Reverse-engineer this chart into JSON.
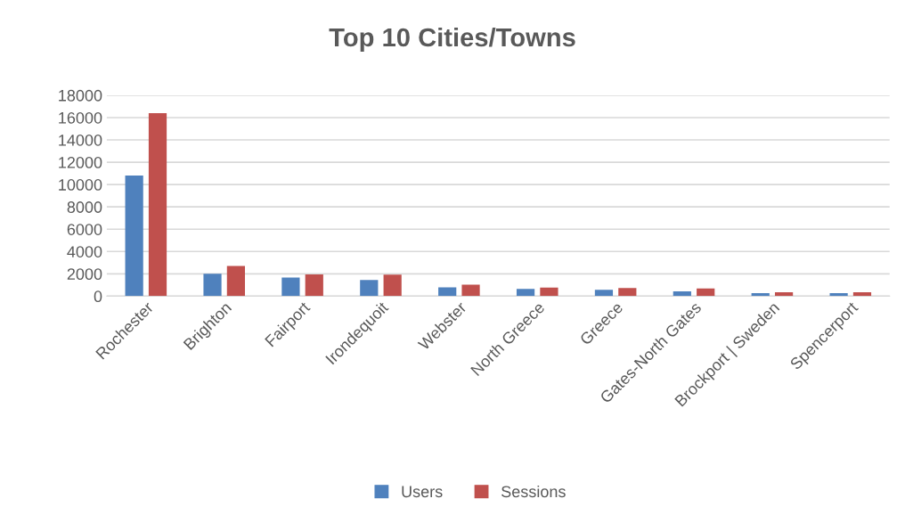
{
  "chart_data": {
    "type": "bar",
    "title": "Top 10 Cities/Towns",
    "categories": [
      "Rochester",
      "Brighton",
      "Fairport",
      "Irondequoit",
      "Webster",
      "North Greece",
      "Greece",
      "Gates-North Gates",
      "Brockport | Sweden",
      "Spencerport"
    ],
    "series": [
      {
        "name": "Users",
        "color": "#4f81bd",
        "values": [
          10800,
          2000,
          1660,
          1450,
          780,
          650,
          570,
          430,
          270,
          270
        ]
      },
      {
        "name": "Sessions",
        "color": "#c0504d",
        "values": [
          16400,
          2700,
          1950,
          1930,
          1020,
          760,
          730,
          680,
          350,
          350
        ]
      }
    ],
    "ylim": [
      0,
      18000
    ],
    "yticks": [
      0,
      2000,
      4000,
      6000,
      8000,
      10000,
      12000,
      14000,
      16000,
      18000
    ],
    "grid": "y",
    "legend": "bottom"
  }
}
